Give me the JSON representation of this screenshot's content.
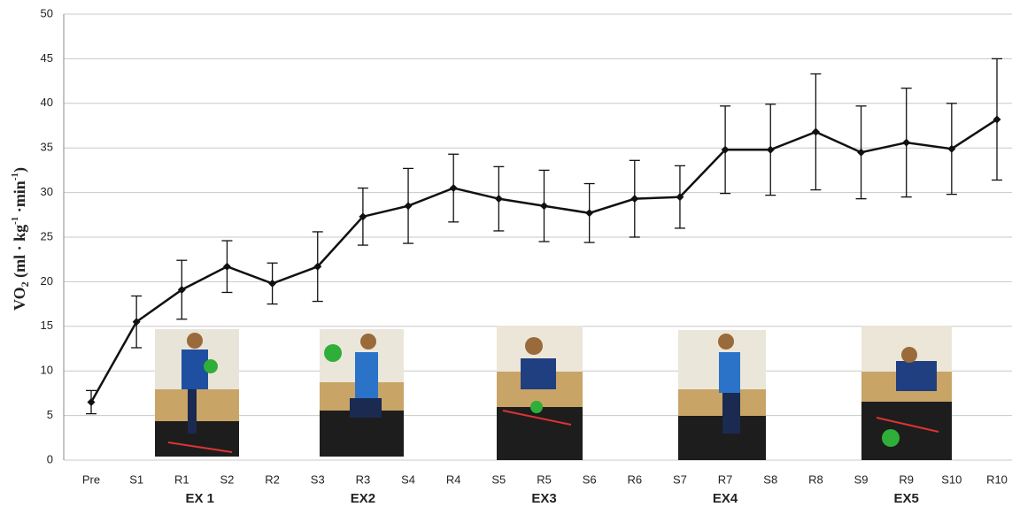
{
  "chart_data": {
    "type": "line",
    "y_label_parts": [
      "VO",
      "2",
      " (ml · kg",
      "-1",
      " ·min",
      "-1",
      ")"
    ],
    "categories": [
      "Pre",
      "S1",
      "R1",
      "S2",
      "R2",
      "S3",
      "R3",
      "S4",
      "R4",
      "S5",
      "R5",
      "S6",
      "R6",
      "S7",
      "R7",
      "S8",
      "R8",
      "S9",
      "R9",
      "S10",
      "R10"
    ],
    "values": [
      6.5,
      15.5,
      19.1,
      21.7,
      19.8,
      21.7,
      27.3,
      28.5,
      30.5,
      29.3,
      28.5,
      27.7,
      29.3,
      29.5,
      34.8,
      34.8,
      36.8,
      34.5,
      35.6,
      34.9,
      38.2
    ],
    "errors": [
      1.3,
      2.9,
      3.3,
      2.9,
      2.3,
      3.9,
      3.2,
      4.2,
      3.8,
      3.6,
      4.0,
      3.3,
      4.3,
      3.5,
      4.9,
      5.1,
      6.5,
      5.2,
      6.1,
      5.1,
      6.8
    ],
    "color": "#111111",
    "groups": [
      "EX 1",
      "EX2",
      "EX3",
      "EX4",
      "EX5"
    ],
    "ylim": [
      0,
      50
    ],
    "yticks": [
      0,
      5,
      10,
      15,
      20,
      25,
      30,
      35,
      40,
      45,
      50
    ],
    "grid": true
  }
}
